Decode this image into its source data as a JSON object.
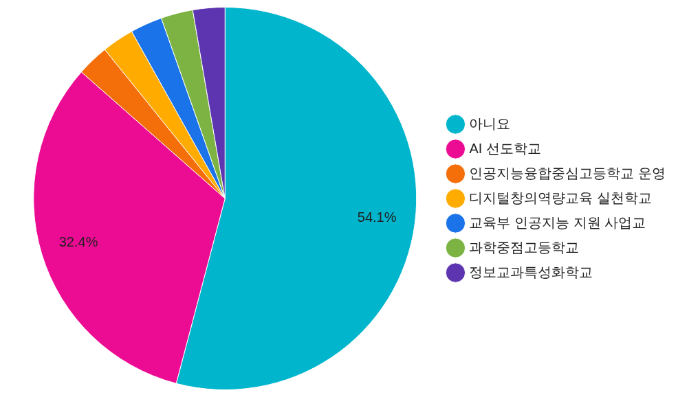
{
  "chart_data": {
    "type": "pie",
    "categories": [
      "아니요",
      "AI 선도학교",
      "인공지능융합중심고등학교 운영",
      "디지털창의역량교육 실천학교",
      "교육부 인공지능 지원 사업교",
      "과학중점고등학교",
      "정보교과특성화학교"
    ],
    "values": [
      54.1,
      32.4,
      2.7,
      2.7,
      2.7,
      2.7,
      2.7
    ],
    "colors": [
      "#00b5cc",
      "#ec0c94",
      "#f46e0a",
      "#ffab00",
      "#1a73e8",
      "#7cb342",
      "#5e35b1"
    ],
    "value_labels": [
      "54.1%",
      "32.4%",
      null,
      null,
      null,
      null,
      null
    ],
    "legend": "right"
  }
}
